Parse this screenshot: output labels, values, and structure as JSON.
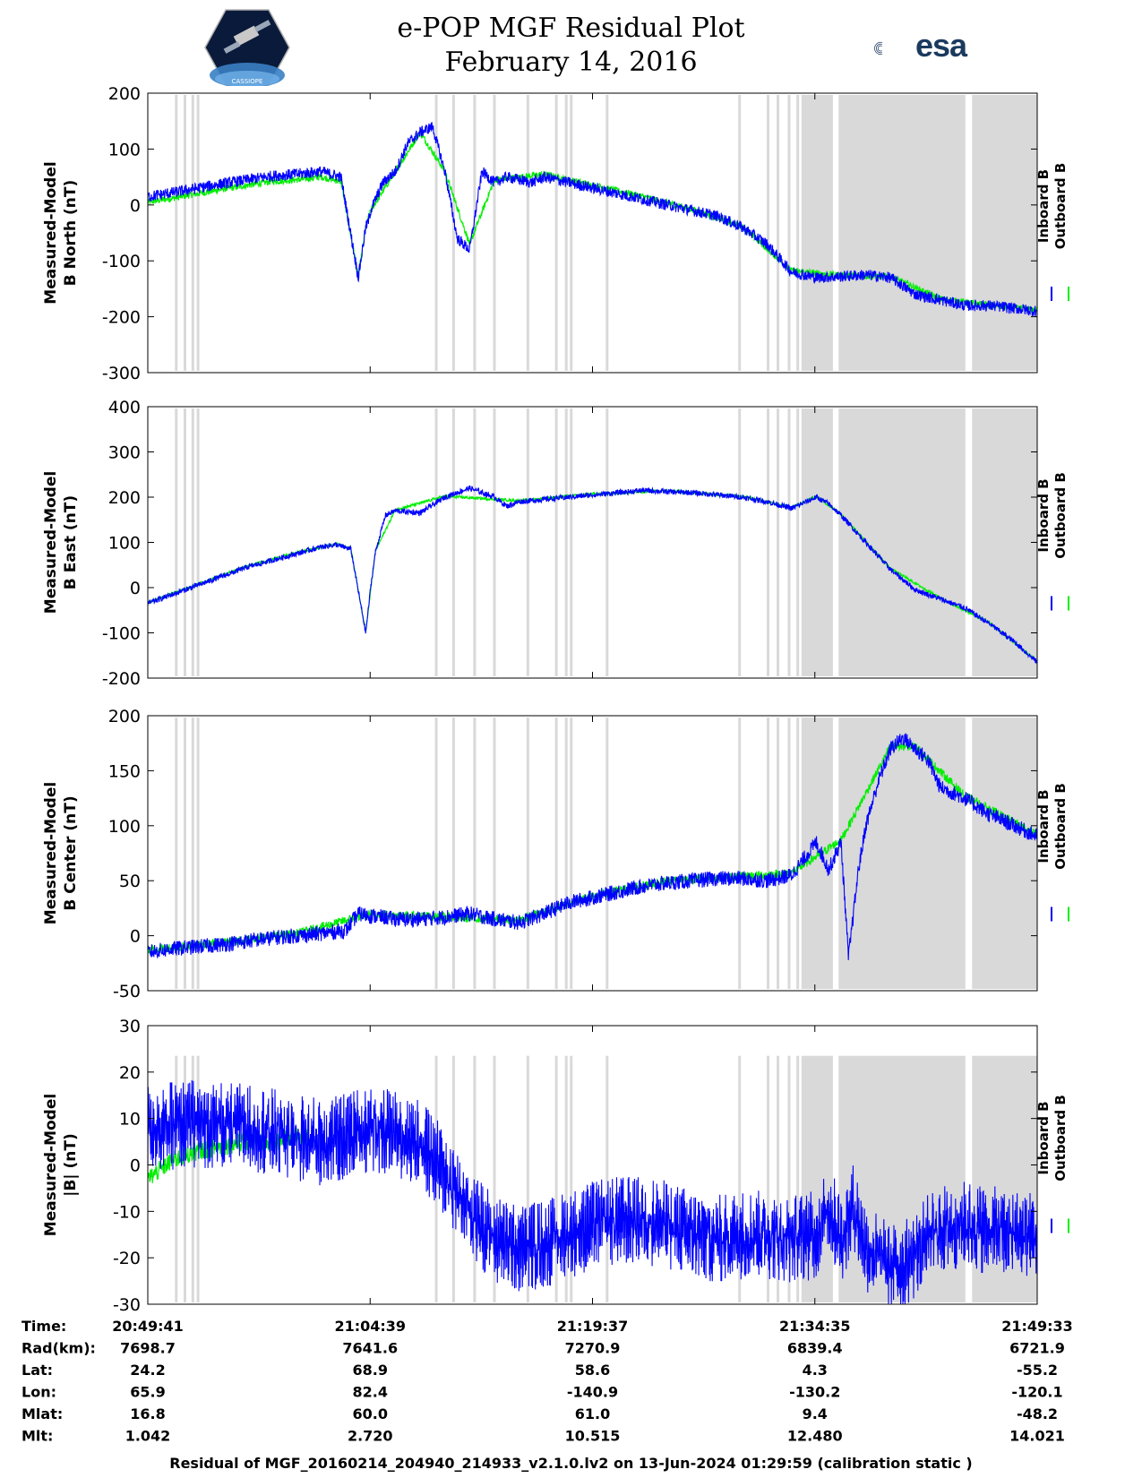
{
  "title_line1": "e-POP MGF Residual Plot",
  "title_line2": "February 14, 2016",
  "logo_right_text": "esa",
  "logo_left_caption": "CASSIOPE",
  "footer": "Residual of MGF_20160214_204940_214933_v2.1.0.lv2 on 13-Jun-2024 01:29:59 (calibration static )",
  "legend": {
    "inboard": "Inboard B",
    "outboard": "Outboard B"
  },
  "colors": {
    "inboard": "#0000ff",
    "outboard": "#00ee00",
    "gap": "#d9d9d9"
  },
  "info_table": {
    "row_labels": [
      "Time:",
      "Rad(km):",
      "Lat:",
      "Lon:",
      "Mlat:",
      "Mlt:"
    ],
    "columns": [
      [
        "20:49:41",
        "7698.7",
        "24.2",
        "65.9",
        "16.8",
        "1.042"
      ],
      [
        "21:04:39",
        "7641.6",
        "68.9",
        "82.4",
        "60.0",
        "2.720"
      ],
      [
        "21:19:37",
        "7270.9",
        "58.6",
        "-140.9",
        "61.0",
        "10.515"
      ],
      [
        "21:34:35",
        "6839.4",
        "4.3",
        "-130.2",
        "9.4",
        "12.480"
      ],
      [
        "21:49:33",
        "6721.9",
        "-55.2",
        "-120.1",
        "-48.2",
        "14.021"
      ]
    ]
  },
  "chart_data": [
    {
      "type": "line",
      "ylabel": [
        "Measured-Model",
        "B North (nT)"
      ],
      "ylim": [
        -300,
        200
      ],
      "yticks": [
        200,
        100,
        0,
        -100,
        -200,
        -300
      ],
      "x_range_seconds": [
        0,
        3592
      ],
      "noise_inboard": 10,
      "noise_outboard": 6,
      "series": [
        {
          "name": "Inboard B",
          "x": [
            0,
            100,
            200,
            300,
            400,
            500,
            600,
            700,
            780,
            850,
            880,
            890,
            900,
            950,
            1000,
            1050,
            1100,
            1150,
            1200,
            1250,
            1300,
            1350,
            1400,
            1450,
            1500,
            1550,
            1600,
            1700,
            1800,
            1900,
            2000,
            2100,
            2200,
            2300,
            2400,
            2500,
            2600,
            2700,
            2800,
            2900,
            3000,
            3100,
            3200,
            3300,
            3400,
            3500,
            3592
          ],
          "y": [
            15,
            22,
            30,
            38,
            45,
            52,
            55,
            60,
            50,
            -130,
            -40,
            -30,
            -10,
            40,
            60,
            110,
            130,
            140,
            60,
            -60,
            -80,
            60,
            40,
            50,
            45,
            40,
            50,
            40,
            30,
            20,
            10,
            0,
            -10,
            -20,
            -40,
            -70,
            -120,
            -130,
            -128,
            -125,
            -130,
            -160,
            -170,
            -180,
            -180,
            -185,
            -190
          ]
        },
        {
          "name": "Outboard B",
          "x": [
            0,
            100,
            200,
            300,
            400,
            500,
            600,
            700,
            780,
            850,
            880,
            900,
            1000,
            1100,
            1200,
            1300,
            1400,
            1500,
            1600,
            1800,
            2000,
            2200,
            2400,
            2600,
            2800,
            3000,
            3200,
            3400,
            3592
          ],
          "y": [
            5,
            12,
            20,
            28,
            35,
            42,
            45,
            50,
            42,
            -128,
            -40,
            -10,
            60,
            130,
            60,
            -70,
            45,
            50,
            55,
            35,
            15,
            -8,
            -38,
            -118,
            -126,
            -128,
            -168,
            -180,
            -188
          ]
        }
      ]
    },
    {
      "type": "line",
      "ylabel": [
        "Measured-Model",
        "B East (nT)"
      ],
      "ylim": [
        -200,
        400
      ],
      "yticks": [
        400,
        300,
        200,
        100,
        0,
        -100,
        -200
      ],
      "x_range_seconds": [
        0,
        3592
      ],
      "noise_inboard": 6,
      "noise_outboard": 3,
      "series": [
        {
          "name": "Inboard B",
          "x": [
            0,
            100,
            200,
            300,
            400,
            500,
            600,
            700,
            760,
            820,
            880,
            900,
            920,
            960,
            1000,
            1100,
            1200,
            1300,
            1400,
            1450,
            1500,
            1600,
            1700,
            1800,
            1900,
            2000,
            2100,
            2200,
            2300,
            2400,
            2500,
            2600,
            2700,
            2750,
            2800,
            2900,
            3000,
            3100,
            3200,
            3300,
            3400,
            3500,
            3592
          ],
          "y": [
            -35,
            -15,
            5,
            25,
            45,
            60,
            75,
            90,
            95,
            85,
            -100,
            0,
            80,
            160,
            170,
            165,
            200,
            220,
            200,
            180,
            190,
            195,
            200,
            205,
            210,
            215,
            212,
            210,
            205,
            200,
            190,
            175,
            200,
            185,
            160,
            100,
            40,
            -5,
            -25,
            -45,
            -80,
            -120,
            -165
          ]
        },
        {
          "name": "Outboard B",
          "x": [
            0,
            200,
            400,
            600,
            760,
            820,
            880,
            920,
            1000,
            1200,
            1500,
            1800,
            2100,
            2400,
            2600,
            2700,
            2800,
            3000,
            3200,
            3400,
            3592
          ],
          "y": [
            -33,
            7,
            47,
            77,
            97,
            87,
            -98,
            82,
            172,
            202,
            192,
            207,
            214,
            202,
            177,
            202,
            162,
            42,
            -23,
            -78,
            -163
          ]
        }
      ]
    },
    {
      "type": "line",
      "ylabel": [
        "Measured-Model",
        "B Center (nT)"
      ],
      "ylim": [
        -50,
        200
      ],
      "yticks": [
        200,
        150,
        100,
        50,
        0,
        -50
      ],
      "x_range_seconds": [
        0,
        3592
      ],
      "noise_inboard": 7,
      "noise_outboard": 4,
      "series": [
        {
          "name": "Inboard B",
          "x": [
            0,
            100,
            200,
            300,
            400,
            500,
            600,
            700,
            800,
            850,
            900,
            950,
            1000,
            1100,
            1200,
            1300,
            1400,
            1500,
            1600,
            1700,
            1800,
            1900,
            2000,
            2100,
            2200,
            2300,
            2400,
            2500,
            2600,
            2650,
            2700,
            2750,
            2800,
            2830,
            2870,
            2900,
            2950,
            3000,
            3050,
            3100,
            3150,
            3200,
            3250,
            3300,
            3400,
            3500,
            3592
          ],
          "y": [
            -15,
            -12,
            -10,
            -8,
            -5,
            -2,
            0,
            2,
            5,
            20,
            18,
            17,
            15,
            15,
            17,
            20,
            15,
            12,
            20,
            30,
            35,
            40,
            45,
            48,
            50,
            52,
            52,
            50,
            55,
            70,
            85,
            60,
            85,
            -20,
            60,
            100,
            140,
            170,
            180,
            170,
            160,
            135,
            130,
            125,
            110,
            100,
            90
          ]
        },
        {
          "name": "Outboard B",
          "x": [
            0,
            300,
            600,
            900,
            1200,
            1500,
            1800,
            2100,
            2400,
            2600,
            2800,
            3000,
            3100,
            3300,
            3592
          ],
          "y": [
            -13,
            -6,
            2,
            20,
            17,
            14,
            37,
            50,
            54,
            57,
            87,
            172,
            172,
            127,
            92
          ]
        }
      ]
    },
    {
      "type": "line",
      "ylabel": [
        "Measured-Model",
        "|B| (nT)"
      ],
      "ylim": [
        -30,
        30
      ],
      "yticks": [
        30,
        20,
        10,
        0,
        -10,
        -20,
        -30
      ],
      "x_range_seconds": [
        0,
        3592
      ],
      "noise_inboard": 6,
      "noise_outboard": 2,
      "series": [
        {
          "name": "Inboard B",
          "x": [
            0,
            100,
            200,
            300,
            400,
            500,
            600,
            700,
            800,
            900,
            1000,
            1100,
            1200,
            1300,
            1400,
            1500,
            1600,
            1700,
            1800,
            1900,
            2000,
            2100,
            2200,
            2300,
            2400,
            2500,
            2600,
            2700,
            2750,
            2800,
            2850,
            2900,
            2950,
            3000,
            3050,
            3100,
            3150,
            3200,
            3250,
            3300,
            3400,
            3500,
            3592
          ],
          "y": [
            8,
            8.5,
            9,
            8.5,
            8,
            7,
            6,
            5,
            6,
            8,
            7,
            5,
            -2,
            -10,
            -16,
            -18,
            -17,
            -15,
            -13,
            -12,
            -12,
            -13,
            -15,
            -16,
            -15,
            -15,
            -16,
            -15,
            -9,
            -16,
            -9,
            -18,
            -20,
            -22,
            -22,
            -19,
            -16,
            -14,
            -13,
            -13,
            -14,
            -15,
            -15
          ]
        },
        {
          "name": "Outboard B",
          "x": [
            0,
            50,
            100,
            200,
            300,
            400,
            500,
            600,
            650
          ],
          "y": [
            -3,
            -1,
            1,
            3,
            4,
            5,
            5,
            6,
            6
          ]
        }
      ]
    }
  ]
}
